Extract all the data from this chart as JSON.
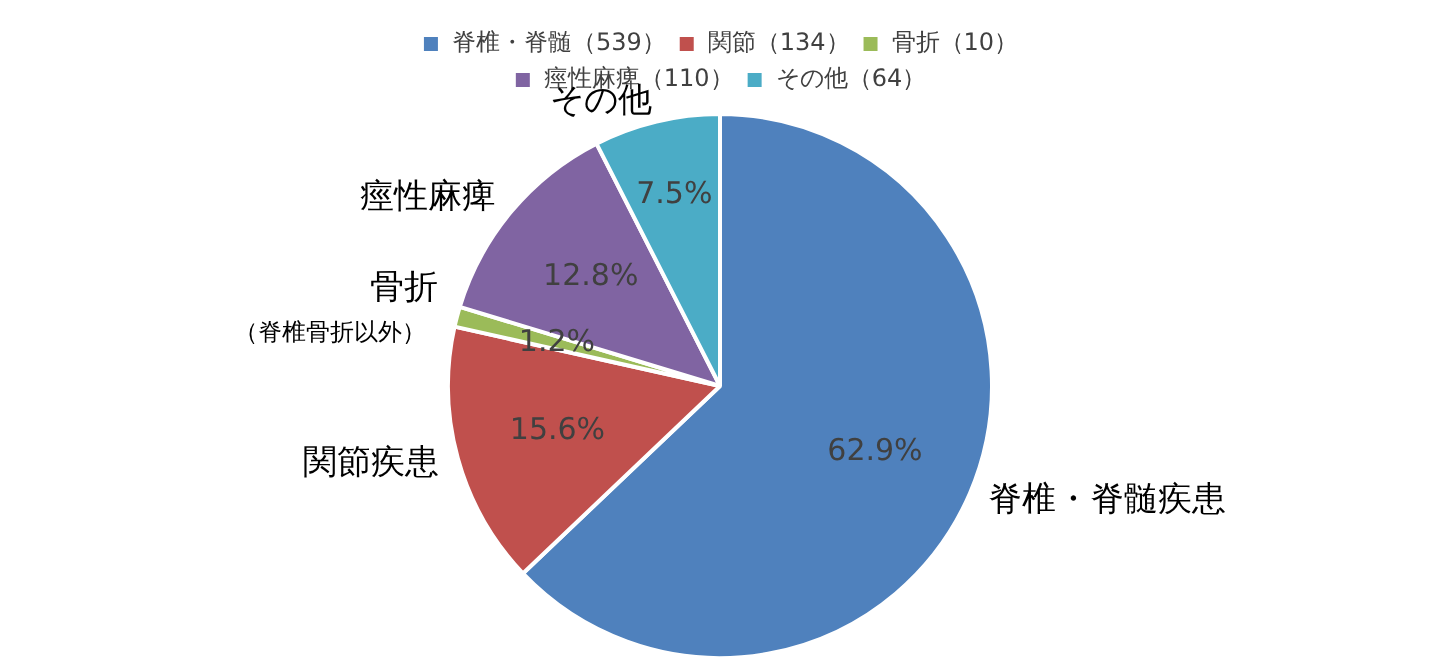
{
  "chart_data": {
    "type": "pie",
    "categories": [
      "脊椎・脊髄（539）",
      "関節（134）",
      "骨折（10）",
      "痙性麻痺（110）",
      "その他（64）"
    ],
    "values": [
      62.9,
      15.6,
      1.2,
      12.8,
      7.5
    ],
    "value_labels": [
      "62.9%",
      "15.6%",
      "1.2%",
      "12.8%",
      "7.5%"
    ],
    "colors": [
      "#4f81bd",
      "#c0504d",
      "#9bbb59",
      "#8064a2",
      "#4bacc6"
    ],
    "annotations": [
      {
        "text": "脊椎・脊髄疾患",
        "x": "脊椎・脊髄（539）"
      },
      {
        "text": "関節疾患",
        "x": "関節（134）"
      },
      {
        "text": "骨折",
        "x": "骨折（10）"
      },
      {
        "text": "（脊椎骨折以外）",
        "x": "骨折（10）"
      },
      {
        "text": "痙性麻痺",
        "x": "痙性麻痺（110）"
      },
      {
        "text": "その他",
        "x": "その他（64）"
      }
    ],
    "legend": "top"
  }
}
